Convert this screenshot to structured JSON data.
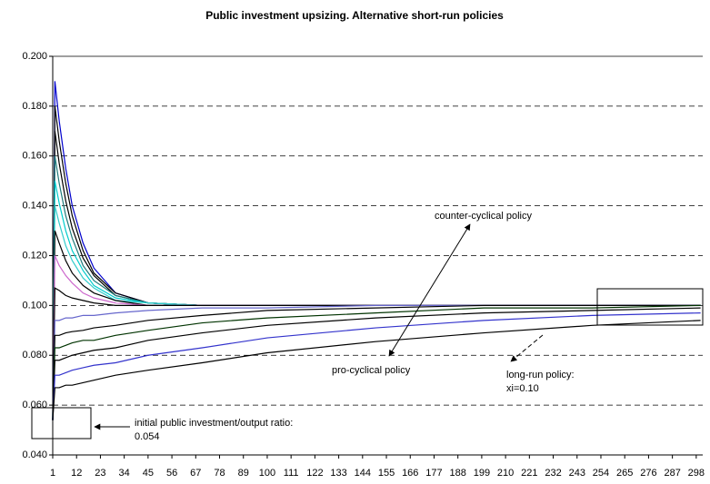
{
  "chart_data": {
    "type": "line",
    "title": "Public investment upsizing. Alternative short-run policies",
    "x": [
      1,
      2,
      4,
      7,
      10,
      15,
      20,
      30,
      45,
      70,
      100,
      150,
      200,
      250,
      300
    ],
    "xlim": [
      1,
      301
    ],
    "xticks": [
      1,
      12,
      23,
      34,
      45,
      56,
      67,
      78,
      89,
      100,
      111,
      122,
      133,
      144,
      155,
      166,
      177,
      188,
      199,
      210,
      221,
      232,
      243,
      254,
      265,
      276,
      287,
      298
    ],
    "ylim": [
      0.04,
      0.2
    ],
    "yticks": [
      {
        "value": 0.04,
        "label": "0.040"
      },
      {
        "value": 0.06,
        "label": "0.060"
      },
      {
        "value": 0.08,
        "label": "0.080"
      },
      {
        "value": 0.1,
        "label": "0.100"
      },
      {
        "value": 0.12,
        "label": "0.120"
      },
      {
        "value": 0.14,
        "label": "0.140"
      },
      {
        "value": 0.16,
        "label": "0.160"
      },
      {
        "value": 0.18,
        "label": "0.180"
      },
      {
        "value": 0.2,
        "label": "0.200"
      }
    ],
    "grid": true,
    "series": [
      {
        "color": "#0000cc",
        "values": [
          0.054,
          0.19,
          0.174,
          0.155,
          0.14,
          0.125,
          0.115,
          0.105,
          0.101,
          0.1,
          0.1,
          0.1,
          0.1,
          0.1,
          0.1
        ]
      },
      {
        "color": "#000000",
        "values": [
          0.054,
          0.18,
          0.166,
          0.149,
          0.136,
          0.122,
          0.113,
          0.105,
          0.101,
          0.1,
          0.1,
          0.1,
          0.1,
          0.1,
          0.1
        ]
      },
      {
        "color": "#000000",
        "values": [
          0.054,
          0.17,
          0.157,
          0.142,
          0.131,
          0.119,
          0.112,
          0.104,
          0.101,
          0.1,
          0.1,
          0.1,
          0.1,
          0.1,
          0.1
        ]
      },
      {
        "color": "#1f7a7a",
        "values": [
          0.054,
          0.16,
          0.149,
          0.136,
          0.127,
          0.116,
          0.11,
          0.104,
          0.101,
          0.1,
          0.1,
          0.1,
          0.1,
          0.1,
          0.1
        ]
      },
      {
        "color": "#00cccc",
        "values": [
          0.054,
          0.15,
          0.141,
          0.13,
          0.122,
          0.114,
          0.108,
          0.103,
          0.101,
          0.1,
          0.1,
          0.1,
          0.1,
          0.1,
          0.1
        ]
      },
      {
        "color": "#33cccc",
        "values": [
          0.054,
          0.14,
          0.133,
          0.124,
          0.118,
          0.111,
          0.107,
          0.102,
          0.101,
          0.1,
          0.1,
          0.1,
          0.1,
          0.1,
          0.1
        ]
      },
      {
        "color": "#000000",
        "values": [
          0.054,
          0.13,
          0.125,
          0.118,
          0.113,
          0.108,
          0.105,
          0.102,
          0.1,
          0.1,
          0.1,
          0.1,
          0.1,
          0.1,
          0.1
        ]
      },
      {
        "color": "#cc66cc",
        "values": [
          0.054,
          0.12,
          0.116,
          0.112,
          0.109,
          0.105,
          0.103,
          0.101,
          0.1,
          0.1,
          0.1,
          0.1,
          0.1,
          0.1,
          0.1
        ]
      },
      {
        "color": "#000000",
        "values": [
          0.054,
          0.107,
          0.106,
          0.104,
          0.103,
          0.102,
          0.101,
          0.1,
          0.1,
          0.1,
          0.1,
          0.1,
          0.1,
          0.1,
          0.1
        ]
      },
      {
        "color": "#6666cc",
        "values": [
          0.054,
          0.094,
          0.094,
          0.095,
          0.095,
          0.096,
          0.096,
          0.097,
          0.098,
          0.099,
          0.099,
          0.1,
          0.1,
          0.1,
          0.1
        ]
      },
      {
        "color": "#000000",
        "values": [
          0.054,
          0.088,
          0.088,
          0.089,
          0.0895,
          0.09,
          0.091,
          0.092,
          0.094,
          0.096,
          0.098,
          0.099,
          0.1,
          0.1,
          0.1
        ]
      },
      {
        "color": "#003300",
        "values": [
          0.054,
          0.083,
          0.083,
          0.084,
          0.085,
          0.086,
          0.086,
          0.088,
          0.09,
          0.093,
          0.095,
          0.097,
          0.099,
          0.099,
          0.1
        ]
      },
      {
        "color": "#000000",
        "values": [
          0.054,
          0.078,
          0.078,
          0.079,
          0.08,
          0.081,
          0.082,
          0.083,
          0.086,
          0.089,
          0.092,
          0.095,
          0.097,
          0.098,
          0.099
        ]
      },
      {
        "color": "#3333cc",
        "values": [
          0.054,
          0.072,
          0.072,
          0.073,
          0.074,
          0.075,
          0.076,
          0.077,
          0.08,
          0.083,
          0.087,
          0.091,
          0.094,
          0.096,
          0.097
        ]
      },
      {
        "color": "#000000",
        "values": [
          0.054,
          0.067,
          0.067,
          0.068,
          0.068,
          0.069,
          0.07,
          0.072,
          0.074,
          0.077,
          0.081,
          0.0855,
          0.089,
          0.092,
          0.094
        ]
      }
    ],
    "annotations": [
      {
        "lines": [
          "counter-cyclical policy"
        ]
      },
      {
        "lines": [
          "pro-cyclical policy"
        ]
      },
      {
        "lines": [
          "long-run policy:",
          "xi=0.10"
        ]
      },
      {
        "lines": [
          "initial public investment/output ratio:",
          "0.054"
        ]
      }
    ]
  }
}
